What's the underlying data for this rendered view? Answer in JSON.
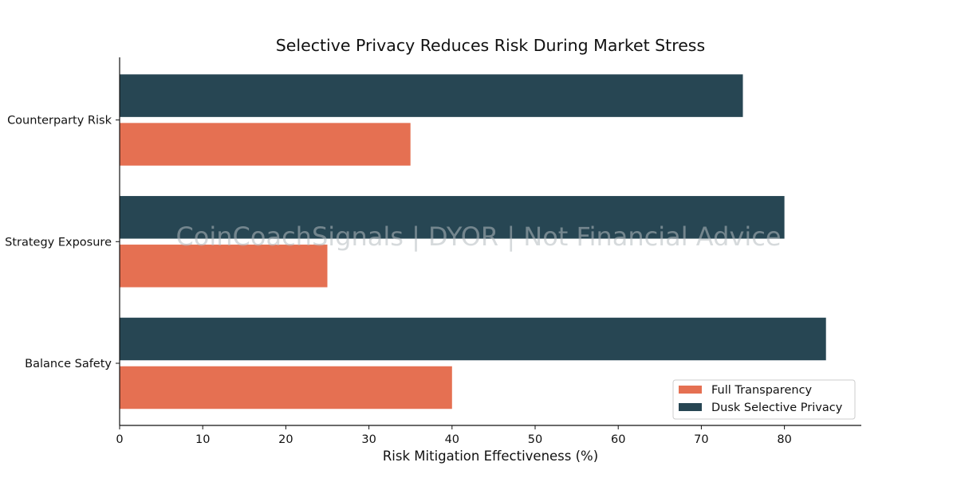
{
  "chart_data": {
    "type": "bar",
    "orientation": "horizontal",
    "title": "Selective Privacy Reduces Risk During Market Stress",
    "xlabel": "Risk Mitigation Effectiveness (%)",
    "ylabel": "",
    "categories": [
      "Balance Safety",
      "Strategy Exposure",
      "Counterparty Risk"
    ],
    "series": [
      {
        "name": "Full Transparency",
        "color": "#e57052",
        "values": [
          40,
          25,
          35
        ]
      },
      {
        "name": "Dusk Selective Privacy",
        "color": "#274653",
        "values": [
          85,
          80,
          75
        ]
      }
    ],
    "xlim": [
      0,
      89.25
    ],
    "xticks": [
      0,
      10,
      20,
      30,
      40,
      50,
      60,
      70,
      80
    ],
    "grid": false,
    "legend_position": "lower-right",
    "watermark": "CoinCoachSignals | DYOR | Not Financial Advice"
  }
}
